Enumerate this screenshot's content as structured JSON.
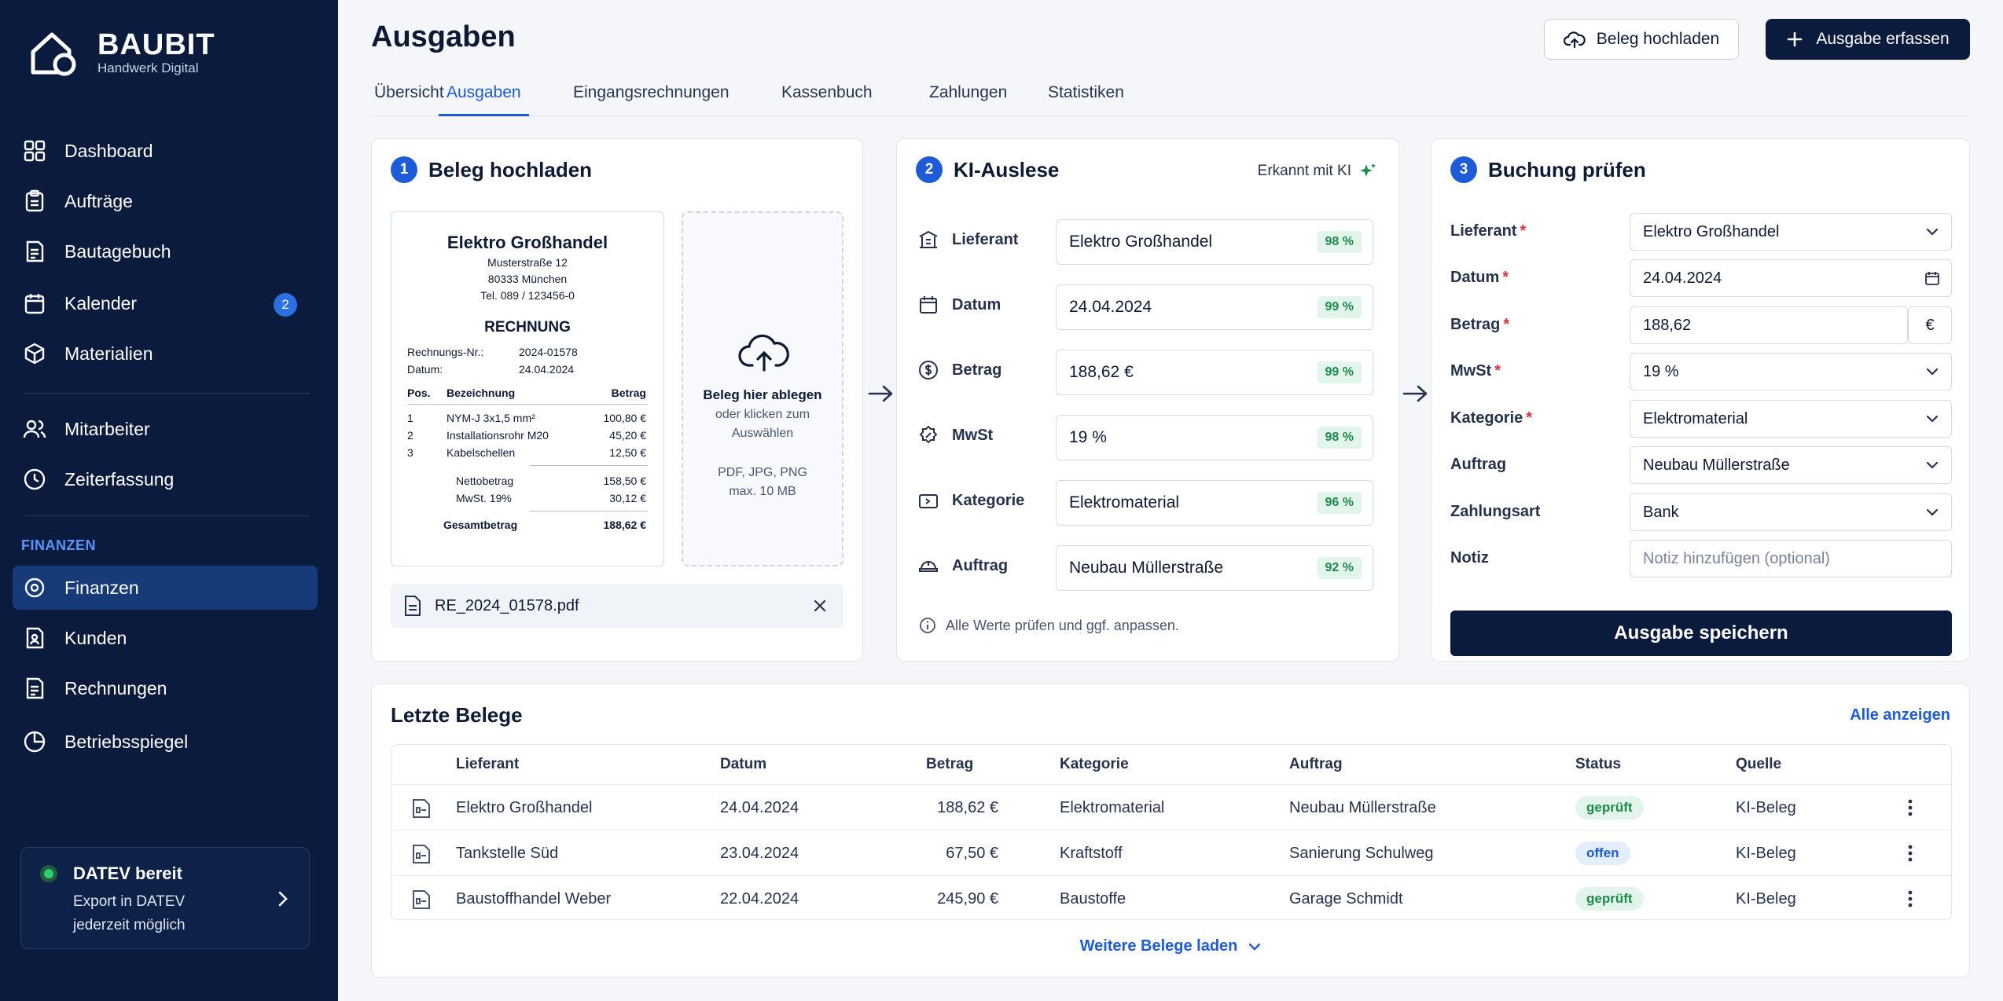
{
  "brand": {
    "name": "BAUBIT",
    "subtitle": "Handwerk Digital"
  },
  "sidebar": {
    "items": [
      {
        "label": "Dashboard",
        "icon": "grid-icon"
      },
      {
        "label": "Aufträge",
        "icon": "clipboard-icon"
      },
      {
        "label": "Bautagebuch",
        "icon": "book-icon"
      },
      {
        "label": "Kalender",
        "icon": "calendar-icon",
        "badge": "2"
      },
      {
        "label": "Materialien",
        "icon": "box-icon"
      },
      {
        "label": "Mitarbeiter",
        "icon": "users-icon"
      },
      {
        "label": "Zeiterfassung",
        "icon": "clock-icon"
      }
    ],
    "section_label": "FINANZEN",
    "finance_items": [
      {
        "label": "Finanzen",
        "icon": "wallet-icon",
        "active": true
      },
      {
        "label": "Kunden",
        "icon": "contact-icon"
      },
      {
        "label": "Rechnungen",
        "icon": "invoice-icon"
      },
      {
        "label": "Betriebsspiegel",
        "icon": "pie-chart-icon"
      }
    ],
    "datev": {
      "title": "DATEV bereit",
      "line1": "Export in DATEV",
      "line2": "jederzeit möglich",
      "status_color": "#2ecc71"
    }
  },
  "header": {
    "title": "Ausgaben",
    "upload_label": "Beleg hochladen",
    "new_label": "Ausgabe erfassen"
  },
  "tabs": [
    "Übersicht",
    "Ausgaben",
    "Eingangsrechnungen",
    "Kassenbuch",
    "Zahlungen",
    "Statistiken"
  ],
  "step1": {
    "num": "1",
    "title": "Beleg hochladen",
    "receipt": {
      "company": "Elektro Großhandel",
      "street": "Musterstraße 12",
      "city": "80333 München",
      "phone": "Tel. 089 / 123456-0",
      "doc_title": "RECHNUNG",
      "nr_label": "Rechnungs-Nr.:",
      "nr_value": "2024-01578",
      "date_label": "Datum:",
      "date_value": "24.04.2024",
      "col_pos": "Pos.",
      "col_desc": "Bezeichnung",
      "col_amount": "Betrag",
      "lines": [
        {
          "pos": "1",
          "desc": "NYM-J 3x1,5 mm²",
          "amount": "100,80 €"
        },
        {
          "pos": "2",
          "desc": "Installationsrohr M20",
          "amount": "45,20 €"
        },
        {
          "pos": "3",
          "desc": "Kabelschellen",
          "amount": "12,50 €"
        }
      ],
      "net_label": "Nettobetrag",
      "net_value": "158,50 €",
      "vat_label": "MwSt. 19%",
      "vat_value": "30,12 €",
      "total_label": "Gesamtbetrag",
      "total_value": "188,62 €"
    },
    "dropzone": {
      "title": "Beleg hier ablegen",
      "line1": "oder klicken zum",
      "line2": "Auswählen",
      "formats": "PDF, JPG, PNG",
      "max": "max. 10 MB"
    },
    "file": "RE_2024_01578.pdf"
  },
  "step2": {
    "num": "2",
    "title": "KI-Auslese",
    "ai_label": "Erkannt mit KI",
    "rows": [
      {
        "label": "Lieferant",
        "value": "Elektro Großhandel",
        "conf": "98 %",
        "icon": "supplier-icon"
      },
      {
        "label": "Datum",
        "value": "24.04.2024",
        "conf": "99 %",
        "icon": "calendar-icon"
      },
      {
        "label": "Betrag",
        "value": "188,62 €",
        "conf": "99 %",
        "icon": "dollar-icon"
      },
      {
        "label": "MwSt",
        "value": "19 %",
        "conf": "98 %",
        "icon": "percent-badge-icon"
      },
      {
        "label": "Kategorie",
        "value": "Elektromaterial",
        "conf": "96 %",
        "icon": "tag-icon"
      },
      {
        "label": "Auftrag",
        "value": "Neubau Müllerstraße",
        "conf": "92 %",
        "icon": "helmet-icon"
      }
    ],
    "hint": "Alle Werte prüfen und ggf. anpassen."
  },
  "step3": {
    "num": "3",
    "title": "Buchung prüfen",
    "fields": [
      {
        "label": "Lieferant",
        "value": "Elektro Großhandel",
        "required": true,
        "kind": "select"
      },
      {
        "label": "Datum",
        "value": "24.04.2024",
        "required": true,
        "kind": "date"
      },
      {
        "label": "Betrag",
        "value": "188,62",
        "required": true,
        "kind": "currency",
        "unit": "€"
      },
      {
        "label": "MwSt",
        "value": "19 %",
        "required": true,
        "kind": "select"
      },
      {
        "label": "Kategorie",
        "value": "Elektromaterial",
        "required": true,
        "kind": "select"
      },
      {
        "label": "Auftrag",
        "value": "Neubau Müllerstraße",
        "required": false,
        "kind": "select"
      },
      {
        "label": "Zahlungsart",
        "value": "Bank",
        "required": false,
        "kind": "select"
      },
      {
        "label": "Notiz",
        "value": "",
        "placeholder": "Notiz hinzufügen (optional)",
        "required": false,
        "kind": "text"
      }
    ],
    "save_label": "Ausgabe speichern"
  },
  "recent": {
    "title": "Letzte Belege",
    "show_all": "Alle anzeigen",
    "columns": [
      "Lieferant",
      "Datum",
      "Betrag",
      "Kategorie",
      "Auftrag",
      "Status",
      "Quelle"
    ],
    "rows": [
      {
        "supplier": "Elektro Großhandel",
        "date": "24.04.2024",
        "amount": "188,62 €",
        "category": "Elektromaterial",
        "order": "Neubau Müllerstraße",
        "status": "geprüft",
        "status_kind": "ok",
        "source": "KI-Beleg"
      },
      {
        "supplier": "Tankstelle Süd",
        "date": "23.04.2024",
        "amount": "67,50 €",
        "category": "Kraftstoff",
        "order": "Sanierung Schulweg",
        "status": "offen",
        "status_kind": "open",
        "source": "KI-Beleg"
      },
      {
        "supplier": "Baustoffhandel Weber",
        "date": "22.04.2024",
        "amount": "245,90 €",
        "category": "Baustoffe",
        "order": "Garage Schmidt",
        "status": "geprüft",
        "status_kind": "ok",
        "source": "KI-Beleg"
      }
    ],
    "load_more": "Weitere Belege laden"
  },
  "colors": {
    "navy": "#0b1b3d",
    "accent": "#1d5bd8",
    "success": "#1d8a4c",
    "required": "#e0323a"
  }
}
